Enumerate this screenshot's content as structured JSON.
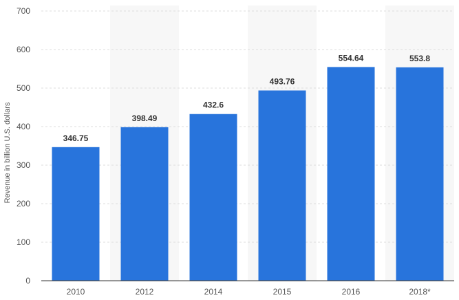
{
  "chart_data": {
    "type": "bar",
    "title": "",
    "xlabel": "",
    "ylabel": "Revenue in billion U.S. dollars",
    "categories": [
      "2010",
      "2012",
      "2014",
      "2015",
      "2016",
      "2018*"
    ],
    "values": [
      346.75,
      398.49,
      432.6,
      493.76,
      554.64,
      553.8
    ],
    "value_labels": [
      "346.75",
      "398.49",
      "432.6",
      "493.76",
      "554.64",
      "553.8"
    ],
    "ylim": [
      0,
      700
    ],
    "yticks": [
      0,
      100,
      200,
      300,
      400,
      500,
      600,
      700
    ],
    "ytick_labels": [
      "0",
      "100",
      "200",
      "300",
      "400",
      "500",
      "600",
      "700"
    ],
    "grid": true,
    "legend": "none",
    "colors": {
      "bar": "#2874dc",
      "alt_band": "#f7f7f7",
      "grid": "#dddddd",
      "axis": "#333333"
    }
  }
}
